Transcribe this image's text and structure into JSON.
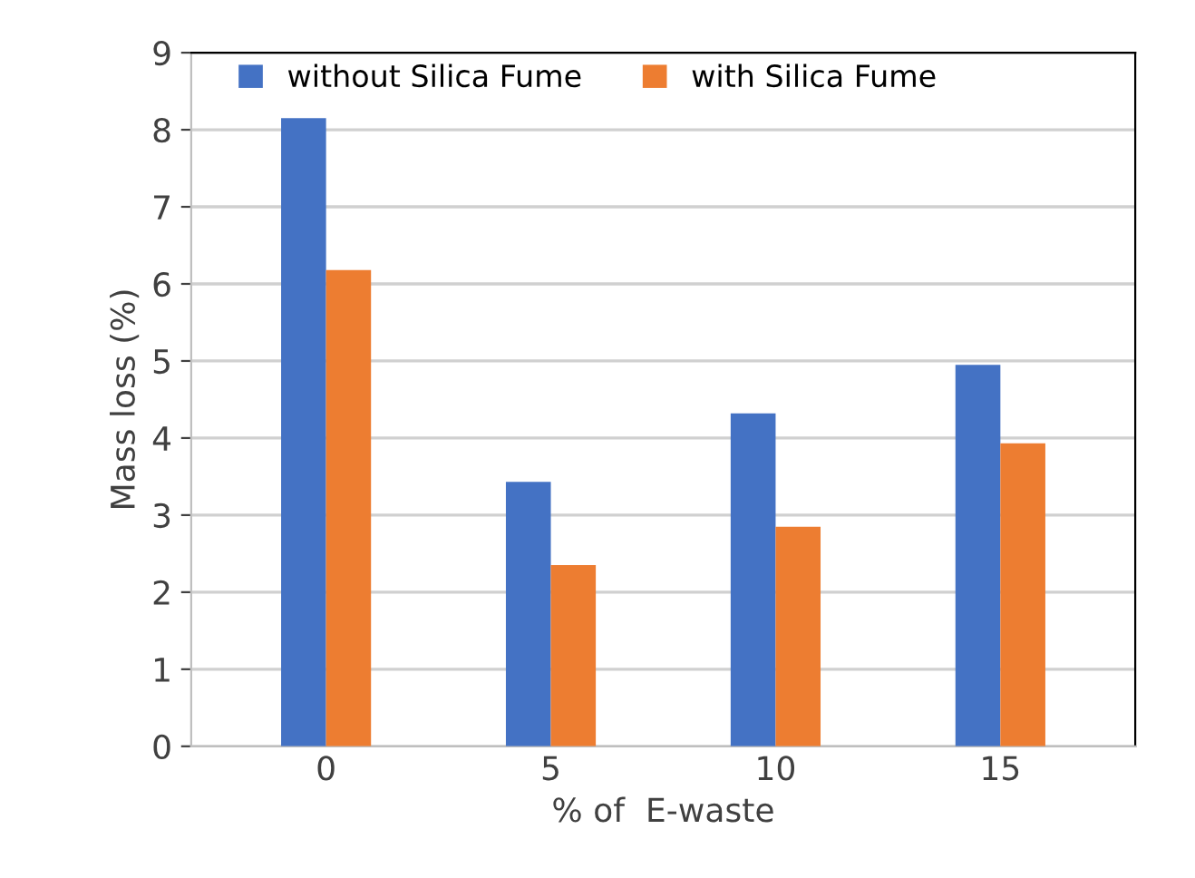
{
  "chart_data": {
    "type": "bar",
    "xlabel": "% of  E-waste",
    "ylabel": "Mass loss (%)",
    "categories": [
      "0",
      "5",
      "10",
      "15"
    ],
    "series": [
      {
        "name": "without Silica Fume",
        "color": "#4472c4",
        "values": [
          8.15,
          3.43,
          4.32,
          4.95
        ]
      },
      {
        "name": "with Silica Fume",
        "color": "#ed7d31",
        "values": [
          6.18,
          2.35,
          2.85,
          3.93
        ]
      }
    ],
    "ylim": [
      0,
      9
    ],
    "yticks": [
      0,
      1,
      2,
      3,
      4,
      5,
      6,
      7,
      8,
      9
    ],
    "grid": "y",
    "legend": "top"
  }
}
